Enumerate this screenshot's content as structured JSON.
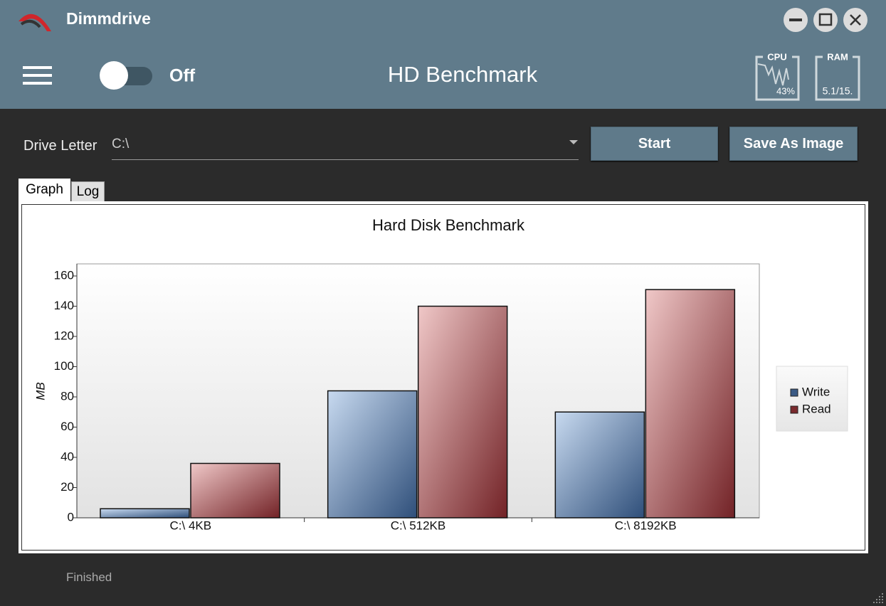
{
  "app": {
    "name": "Dimmdrive",
    "toggle": "Off",
    "title": "HD Benchmark",
    "cpu_label": "CPU",
    "cpu_value": "43%",
    "ram_label": "RAM",
    "ram_value": "5.1/15.",
    "drive_label": "Drive Letter",
    "drive_value": "C:\\",
    "start": "Start",
    "save": "Save As Image",
    "tabs": [
      "Graph",
      "Log"
    ],
    "status": "Finished"
  },
  "chart_data": {
    "type": "bar",
    "title": "Hard Disk Benchmark",
    "y_label": "MB",
    "categories": [
      "C:\\ 4KB",
      "C:\\ 512KB",
      "C:\\ 8192KB"
    ],
    "series": [
      {
        "name": "Write",
        "color": "#3a5a85",
        "values": [
          6,
          84,
          70
        ]
      },
      {
        "name": "Read",
        "color": "#7a2a2e",
        "values": [
          36,
          140,
          151
        ]
      }
    ],
    "ylim": [
      0,
      168
    ],
    "yticks": [
      0,
      20,
      40,
      60,
      80,
      100,
      120,
      140,
      160
    ],
    "grid": false,
    "legend": "right"
  }
}
